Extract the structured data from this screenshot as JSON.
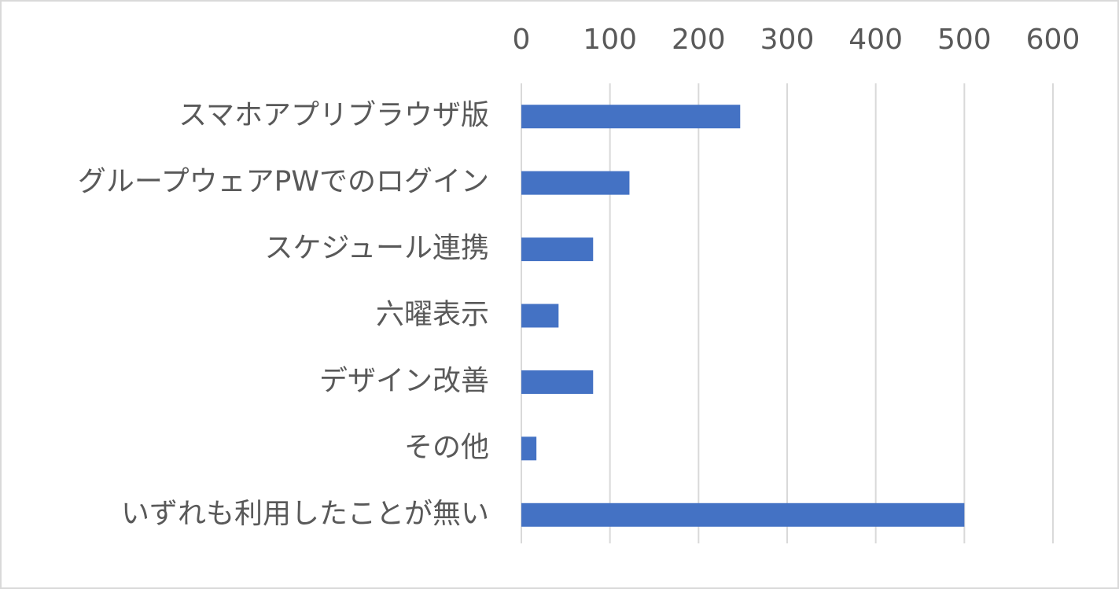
{
  "chart_data": {
    "type": "bar",
    "orientation": "horizontal",
    "axis_position": "top",
    "categories": [
      "スマホアプリブラウザ版",
      "グループウェアPWでのログイン",
      "スケジュール連携",
      "六曜表示",
      "デザイン改善",
      "その他",
      "いずれも利用したことが無い"
    ],
    "values": [
      247,
      122,
      81,
      42,
      81,
      17,
      500
    ],
    "color": "#4472c4",
    "xlim": [
      0,
      600
    ],
    "xticks": [
      0,
      100,
      200,
      300,
      400,
      500,
      600
    ],
    "grid": true
  }
}
